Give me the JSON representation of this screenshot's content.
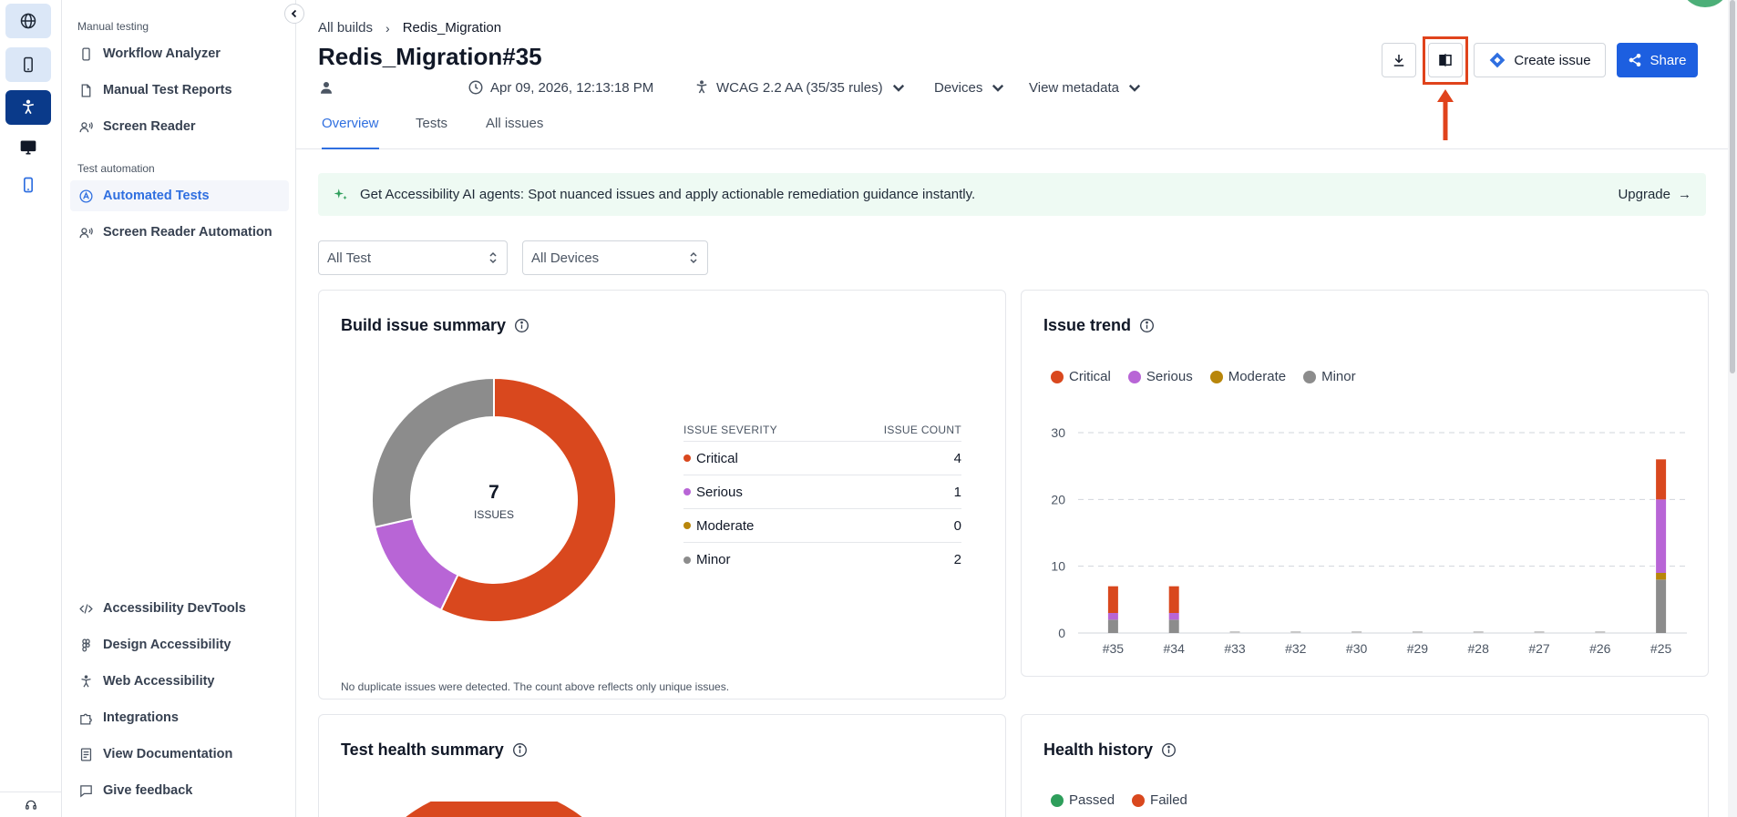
{
  "sidebar": {
    "sections": [
      {
        "label": "Manual testing"
      },
      {
        "label": "Test automation"
      }
    ],
    "items": [
      {
        "label": "Workflow Analyzer",
        "icon": "phone-icon"
      },
      {
        "label": "Manual Test Reports",
        "icon": "report-icon"
      },
      {
        "label": "Screen Reader",
        "icon": "screen-reader-icon"
      },
      {
        "label": "Automated Tests",
        "icon": "automation-icon"
      },
      {
        "label": "Screen Reader Automation",
        "icon": "screen-reader-icon"
      },
      {
        "label": "Accessibility DevTools",
        "icon": "devtools-icon"
      },
      {
        "label": "Design Accessibility",
        "icon": "figma-icon"
      },
      {
        "label": "Web Accessibility",
        "icon": "accessibility-icon"
      },
      {
        "label": "Integrations",
        "icon": "puzzle-icon"
      },
      {
        "label": "View Documentation",
        "icon": "document-icon"
      },
      {
        "label": "Give feedback",
        "icon": "feedback-icon"
      }
    ]
  },
  "breadcrumb": {
    "root": "All builds",
    "separator": "›",
    "current": "Redis_Migration"
  },
  "page_title": "Redis_Migration#35",
  "meta": {
    "timestamp": "Apr 09, 2026, 12:13:18 PM",
    "wcag": "WCAG 2.2 AA (35/35 rules)",
    "devices": "Devices",
    "view_metadata": "View metadata"
  },
  "actions": {
    "create_issue": "Create issue",
    "share": "Share"
  },
  "tabs": [
    {
      "label": "Overview",
      "active": true
    },
    {
      "label": "Tests",
      "active": false
    },
    {
      "label": "All issues",
      "active": false
    }
  ],
  "banner": {
    "text": "Get Accessibility AI agents: Spot nuanced issues and apply actionable remediation guidance instantly.",
    "upgrade": "Upgrade"
  },
  "filters": {
    "test": "All Test",
    "devices": "All Devices"
  },
  "build_summary": {
    "title": "Build issue summary",
    "total": "7",
    "total_label": "ISSUES",
    "col_severity": "ISSUE SEVERITY",
    "col_count": "ISSUE COUNT",
    "rows": [
      {
        "label": "Critical",
        "count": "4",
        "color": "#d9481e"
      },
      {
        "label": "Serious",
        "count": "1",
        "color": "#b865d6"
      },
      {
        "label": "Moderate",
        "count": "0",
        "color": "#b8860b"
      },
      {
        "label": "Minor",
        "count": "2",
        "color": "#8c8c8c"
      }
    ],
    "footnote": "No duplicate issues were detected. The count above reflects only unique issues."
  },
  "issue_trend": {
    "title": "Issue trend",
    "legend": [
      "Critical",
      "Serious",
      "Moderate",
      "Minor"
    ]
  },
  "chart_data": {
    "type": "bar",
    "stacked": true,
    "categories": [
      "#35",
      "#34",
      "#33",
      "#32",
      "#30",
      "#29",
      "#28",
      "#27",
      "#26",
      "#25"
    ],
    "series": [
      {
        "name": "Minor",
        "color": "#8c8c8c",
        "values": [
          2,
          2,
          0,
          0,
          0,
          0,
          0,
          0,
          0,
          8
        ]
      },
      {
        "name": "Moderate",
        "color": "#b8860b",
        "values": [
          0,
          0,
          0,
          0,
          0,
          0,
          0,
          0,
          0,
          1
        ]
      },
      {
        "name": "Serious",
        "color": "#b865d6",
        "values": [
          1,
          1,
          0,
          0,
          0,
          0,
          0,
          0,
          0,
          11
        ]
      },
      {
        "name": "Critical",
        "color": "#d9481e",
        "values": [
          4,
          4,
          0,
          0,
          0,
          0,
          0,
          0,
          0,
          6
        ]
      }
    ],
    "yticks": [
      0,
      10,
      20,
      30
    ],
    "ylim": [
      0,
      30
    ],
    "grid": true,
    "legend_position": "top-left"
  },
  "test_health": {
    "title": "Test health summary"
  },
  "health_history": {
    "title": "Health history",
    "legend": [
      {
        "label": "Passed",
        "color": "#2e9e5b"
      },
      {
        "label": "Failed",
        "color": "#d9481e"
      }
    ]
  },
  "colors": {
    "accent": "#2f6fe0",
    "share": "#1d5fe0",
    "highlight": "#e0431c",
    "banner_bg": "#eefaf3"
  }
}
